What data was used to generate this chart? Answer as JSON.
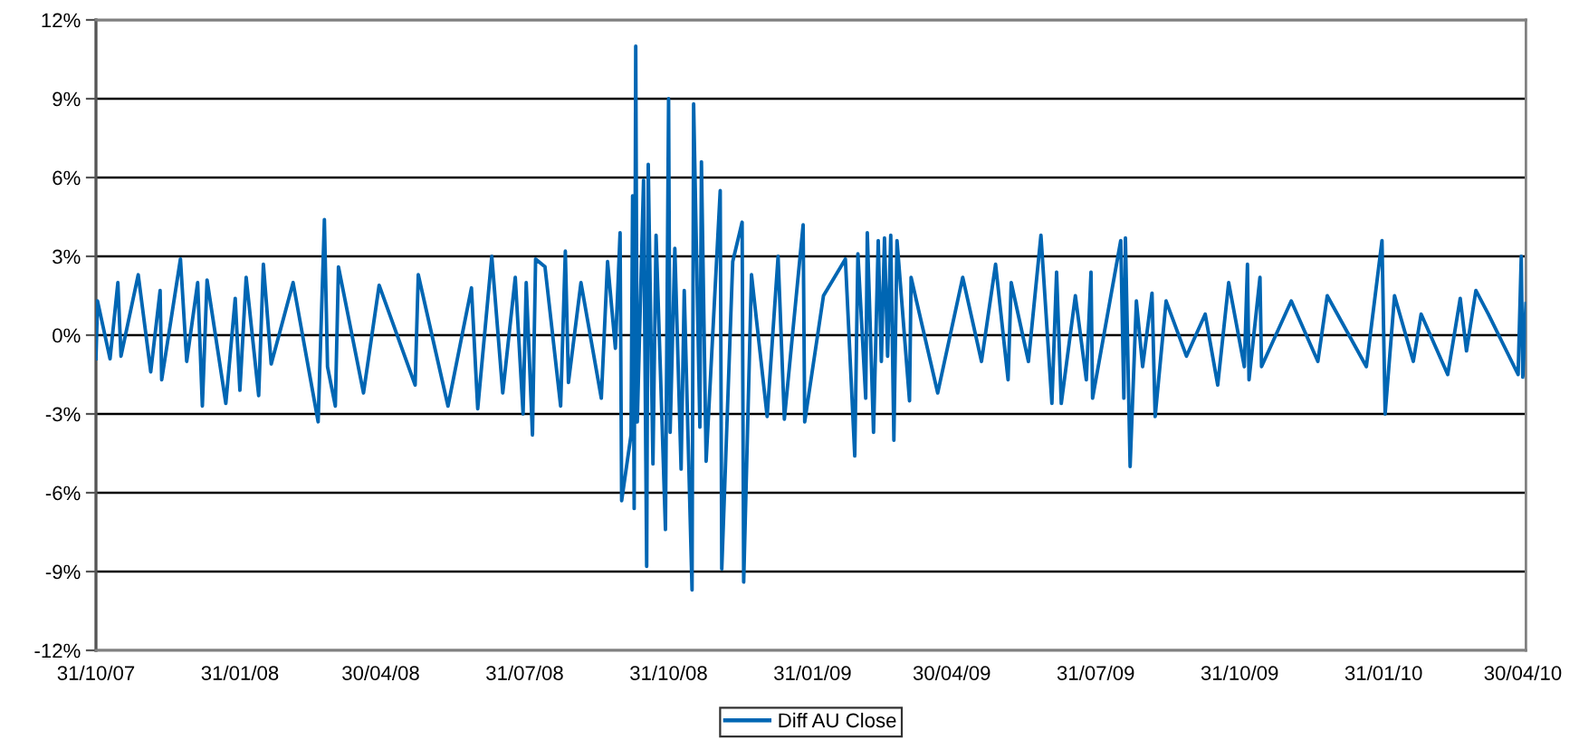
{
  "chart_data": {
    "type": "line",
    "x": [
      "2007-10-31",
      "2007-11-01",
      "2007-11-09",
      "2007-11-14",
      "2007-11-16",
      "2007-11-27",
      "2007-12-05",
      "2007-12-11",
      "2007-12-12",
      "2007-12-24",
      "2007-12-28",
      "2008-01-04",
      "2008-01-07",
      "2008-01-10",
      "2008-01-22",
      "2008-01-28",
      "2008-01-31",
      "2008-02-04",
      "2008-02-12",
      "2008-02-15",
      "2008-02-20",
      "2008-03-05",
      "2008-03-21",
      "2008-03-25",
      "2008-03-27",
      "2008-04-01",
      "2008-04-03",
      "2008-04-19",
      "2008-04-29",
      "2008-05-22",
      "2008-05-24",
      "2008-06-12",
      "2008-06-27",
      "2008-07-01",
      "2008-07-10",
      "2008-07-17",
      "2008-07-25",
      "2008-07-30",
      "2008-08-01",
      "2008-08-05",
      "2008-08-07",
      "2008-08-13",
      "2008-08-23",
      "2008-08-26",
      "2008-08-28",
      "2008-09-05",
      "2008-09-18",
      "2008-09-22",
      "2008-09-27",
      "2008-09-30",
      "2008-10-01",
      "2008-10-07",
      "2008-10-08",
      "2008-10-09",
      "2008-10-10",
      "2008-10-11",
      "2008-10-15",
      "2008-10-17",
      "2008-10-18",
      "2008-10-21",
      "2008-10-23",
      "2008-10-29",
      "2008-10-31",
      "2008-11-01",
      "2008-11-04",
      "2008-11-08",
      "2008-11-10",
      "2008-11-15",
      "2008-11-16",
      "2008-11-20",
      "2008-11-21",
      "2008-11-24",
      "2008-12-03",
      "2008-12-04",
      "2008-12-11",
      "2008-12-17",
      "2008-12-18",
      "2008-12-23",
      "2009-01-02",
      "2009-01-09",
      "2009-01-13",
      "2009-01-25",
      "2009-01-26",
      "2009-02-07",
      "2009-02-21",
      "2009-02-27",
      "2009-03-01",
      "2009-03-06",
      "2009-03-07",
      "2009-03-11",
      "2009-03-14",
      "2009-03-16",
      "2009-03-18",
      "2009-03-20",
      "2009-03-22",
      "2009-03-24",
      "2009-03-26",
      "2009-04-03",
      "2009-04-04",
      "2009-04-21",
      "2009-05-07",
      "2009-05-19",
      "2009-05-28",
      "2009-06-05",
      "2009-06-07",
      "2009-06-18",
      "2009-06-26",
      "2009-07-03",
      "2009-07-06",
      "2009-07-09",
      "2009-07-18",
      "2009-07-25",
      "2009-07-28",
      "2009-07-29",
      "2009-08-16",
      "2009-08-18",
      "2009-08-19",
      "2009-08-22",
      "2009-08-26",
      "2009-08-30",
      "2009-09-05",
      "2009-09-07",
      "2009-09-14",
      "2009-09-27",
      "2009-10-09",
      "2009-10-17",
      "2009-10-24",
      "2009-11-03",
      "2009-11-05",
      "2009-11-06",
      "2009-11-13",
      "2009-11-14",
      "2009-12-03",
      "2009-12-20",
      "2009-12-26",
      "2010-01-20",
      "2010-01-30",
      "2010-02-01",
      "2010-02-07",
      "2010-02-19",
      "2010-02-24",
      "2010-03-13",
      "2010-03-21",
      "2010-03-25",
      "2010-03-31",
      "2010-04-08",
      "2010-04-27",
      "2010-04-29",
      "2010-04-30",
      "2010-05-02"
    ],
    "series": [
      {
        "name": "Diff AU Close",
        "color": "#0066b3",
        "values": [
          -0.9,
          1.3,
          -0.9,
          2.0,
          -0.8,
          2.3,
          -1.4,
          1.7,
          -1.7,
          2.9,
          -1.0,
          2.0,
          -2.7,
          2.1,
          -2.6,
          1.4,
          -2.1,
          2.2,
          -2.3,
          2.7,
          -1.1,
          2.0,
          -3.3,
          4.4,
          -1.2,
          -2.7,
          2.6,
          -2.2,
          1.9,
          -1.9,
          2.3,
          -2.7,
          1.8,
          -2.8,
          3.0,
          -2.2,
          2.2,
          -3.0,
          2.0,
          -3.8,
          2.9,
          2.6,
          -2.7,
          3.2,
          -1.8,
          2.0,
          -2.4,
          2.8,
          -0.5,
          3.9,
          -6.3,
          -3.8,
          5.3,
          -6.6,
          11.0,
          -3.3,
          5.9,
          -8.8,
          6.5,
          -4.9,
          3.8,
          -7.4,
          9.0,
          -3.7,
          3.3,
          -5.1,
          1.7,
          -9.7,
          8.8,
          -3.5,
          6.6,
          -4.8,
          5.5,
          -8.9,
          2.8,
          4.3,
          -9.4,
          2.3,
          -3.1,
          3.0,
          -3.2,
          4.2,
          -3.3,
          1.5,
          2.9,
          -4.6,
          3.1,
          -2.4,
          3.9,
          -3.7,
          3.6,
          -1.0,
          3.7,
          -0.8,
          3.8,
          -4.0,
          3.6,
          -2.5,
          2.2,
          -2.2,
          2.2,
          -1.0,
          2.7,
          -1.7,
          2.0,
          -1.0,
          3.8,
          -2.6,
          2.4,
          -2.6,
          1.5,
          -1.7,
          2.4,
          -2.4,
          3.6,
          -2.4,
          3.7,
          -5.0,
          1.3,
          -1.2,
          1.6,
          -3.1,
          1.3,
          -0.8,
          0.8,
          -1.9,
          2.0,
          -1.2,
          2.7,
          -1.7,
          2.2,
          -1.2,
          1.3,
          -1.0,
          1.5,
          -1.2,
          3.6,
          -3.0,
          1.5,
          -1.0,
          0.8,
          -1.5,
          1.4,
          -0.6,
          1.7,
          0.8,
          -1.5,
          3.0,
          -1.6,
          1.2
        ]
      }
    ],
    "xlim": [
      "2007-10-31",
      "2010-05-02"
    ],
    "xticks": [
      {
        "value": "2007-10-31",
        "label": "31/10/07"
      },
      {
        "value": "2008-01-31",
        "label": "31/01/08"
      },
      {
        "value": "2008-04-30",
        "label": "30/04/08"
      },
      {
        "value": "2008-07-31",
        "label": "31/07/08"
      },
      {
        "value": "2008-10-31",
        "label": "31/10/08"
      },
      {
        "value": "2009-01-31",
        "label": "31/01/09"
      },
      {
        "value": "2009-04-30",
        "label": "30/04/09"
      },
      {
        "value": "2009-07-31",
        "label": "31/07/09"
      },
      {
        "value": "2009-10-31",
        "label": "31/10/09"
      },
      {
        "value": "2010-01-31",
        "label": "31/01/10"
      },
      {
        "value": "2010-04-30",
        "label": "30/04/10"
      }
    ],
    "ylim": [
      -12,
      12
    ],
    "yticks": [
      {
        "value": -12,
        "label": "-12%"
      },
      {
        "value": -9,
        "label": "-9%"
      },
      {
        "value": -6,
        "label": "-6%"
      },
      {
        "value": -3,
        "label": "-3%"
      },
      {
        "value": 0,
        "label": "0%"
      },
      {
        "value": 3,
        "label": "3%"
      },
      {
        "value": 6,
        "label": "6%"
      },
      {
        "value": 9,
        "label": "9%"
      },
      {
        "value": 12,
        "label": "12%"
      }
    ],
    "grid": "y",
    "legend": "bottom",
    "line_style": "solid"
  }
}
